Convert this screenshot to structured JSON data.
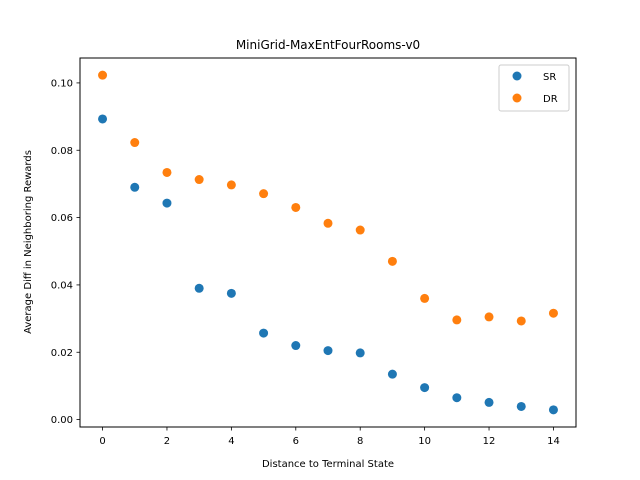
{
  "chart_data": {
    "type": "scatter",
    "title": "MiniGrid-MaxEntFourRooms-v0",
    "xlabel": "Distance to Terminal State",
    "ylabel": "Average Diff in Neighboring Rewards",
    "xlim": [
      -0.7,
      14.7
    ],
    "ylim": [
      -0.0022,
      0.1074
    ],
    "xticks": [
      0,
      2,
      4,
      6,
      8,
      10,
      12,
      14
    ],
    "yticks": [
      0.0,
      0.02,
      0.04,
      0.06,
      0.08,
      0.1
    ],
    "ytick_labels": [
      "0.00",
      "0.02",
      "0.04",
      "0.06",
      "0.08",
      "0.10"
    ],
    "grid": false,
    "legend_position": "top-right",
    "x": [
      0,
      1,
      2,
      3,
      4,
      5,
      6,
      7,
      8,
      9,
      10,
      11,
      12,
      13,
      14
    ],
    "series": [
      {
        "name": "SR",
        "color": "#1f77b4",
        "values": [
          0.0893,
          0.069,
          0.0643,
          0.039,
          0.0375,
          0.0257,
          0.022,
          0.0205,
          0.0198,
          0.0135,
          0.0095,
          0.0065,
          0.0051,
          0.0039,
          0.0029
        ]
      },
      {
        "name": "DR",
        "color": "#ff7f0e",
        "values": [
          0.1023,
          0.0823,
          0.0734,
          0.0713,
          0.0697,
          0.0671,
          0.063,
          0.0583,
          0.0563,
          0.047,
          0.036,
          0.0296,
          0.0305,
          0.0293,
          0.0316
        ]
      }
    ]
  }
}
